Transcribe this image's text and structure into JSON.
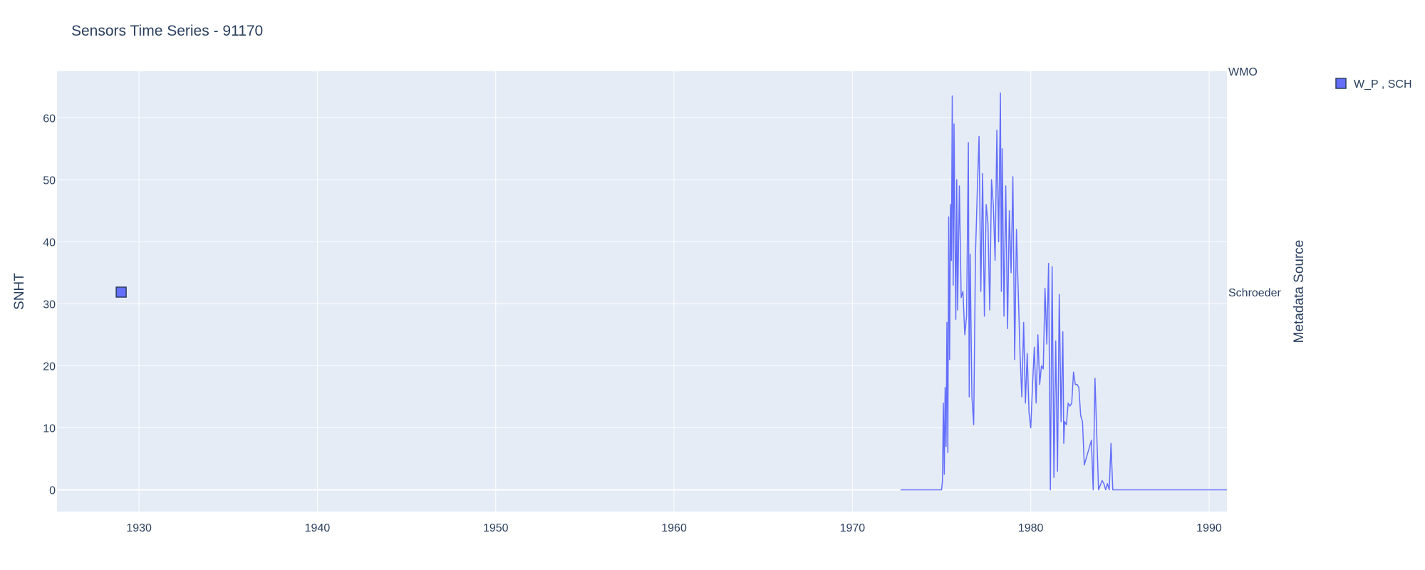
{
  "chart_data": {
    "type": "line",
    "title": "Sensors Time Series - 91170",
    "xlabel": "",
    "ylabel": "SNHT",
    "y2label": "Metadata Source",
    "xlim": [
      1925.4,
      1991.0
    ],
    "ylim": [
      -3.5,
      67.5
    ],
    "x_ticks": [
      1930,
      1940,
      1950,
      1960,
      1970,
      1980,
      1990
    ],
    "y_ticks": [
      0,
      10,
      20,
      30,
      40,
      50,
      60
    ],
    "y2_categories": [
      "Schroeder",
      "WMO"
    ],
    "grid": true,
    "legend_position": "top-right",
    "legend": [
      {
        "label": "W_P , SCH",
        "color": "#636efa",
        "marker": "square"
      }
    ],
    "colors": {
      "series": "#636efa",
      "plot_bg": "#e5ecf6",
      "grid": "#ffffff",
      "text": "#2a3f5f"
    },
    "marker_points": [
      {
        "x": 1929.0,
        "y2": "Schroeder",
        "name": "W_P , SCH"
      }
    ],
    "series": [
      {
        "x": [
          1972.7,
          1975.0,
          1975.05,
          1975.1,
          1975.15,
          1975.2,
          1975.25,
          1975.3,
          1975.35,
          1975.4,
          1975.45,
          1975.5,
          1975.55,
          1975.6,
          1975.65,
          1975.7,
          1975.75,
          1975.8,
          1975.85,
          1975.9,
          1976.0,
          1976.1,
          1976.2,
          1976.3,
          1976.4,
          1976.5,
          1976.55,
          1976.6,
          1976.7,
          1976.8,
          1976.9,
          1977.0,
          1977.1,
          1977.2,
          1977.3,
          1977.4,
          1977.5,
          1977.6,
          1977.7,
          1977.8,
          1977.9,
          1978.0,
          1978.1,
          1978.2,
          1978.3,
          1978.35,
          1978.4,
          1978.5,
          1978.6,
          1978.7,
          1978.8,
          1978.9,
          1979.0,
          1979.1,
          1979.2,
          1979.3,
          1979.4,
          1979.5,
          1979.6,
          1979.7,
          1979.8,
          1979.9,
          1980.0,
          1980.1,
          1980.2,
          1980.3,
          1980.4,
          1980.5,
          1980.6,
          1980.7,
          1980.8,
          1980.9,
          1981.0,
          1981.1,
          1981.2,
          1981.3,
          1981.4,
          1981.5,
          1981.6,
          1981.7,
          1981.8,
          1981.85,
          1981.9,
          1982.0,
          1982.1,
          1982.2,
          1982.3,
          1982.4,
          1982.5,
          1982.6,
          1982.7,
          1982.8,
          1982.9,
          1983.0,
          1983.2,
          1983.4,
          1983.5,
          1983.6,
          1983.8,
          1984.0,
          1984.1,
          1984.2,
          1984.3,
          1984.4,
          1984.5,
          1984.6,
          1984.7,
          1984.8,
          1984.9,
          1985.0,
          1985.1,
          1985.2,
          1985.25,
          1985.3,
          1985.35,
          1985.4,
          1985.5,
          1986.0,
          1988.0,
          1991.0
        ],
        "y": [
          0,
          0,
          1.5,
          14,
          2.5,
          16.5,
          7,
          27,
          6,
          44,
          21,
          46,
          37,
          63.5,
          33,
          59,
          41,
          27.5,
          50,
          29,
          49,
          31,
          32,
          25,
          28,
          56,
          15,
          38,
          15,
          10.5,
          38,
          48,
          57,
          32,
          51,
          28,
          46,
          43,
          29,
          50,
          46,
          37,
          58,
          40,
          64,
          32,
          55,
          28,
          49,
          26,
          45,
          35,
          50.5,
          21,
          42,
          32,
          22,
          15,
          27,
          14,
          22,
          12.5,
          10,
          17,
          23,
          14,
          25,
          17,
          20,
          19.5,
          32.5,
          23.5,
          36.5,
          0,
          36,
          2,
          24,
          3,
          31.5,
          11,
          25.5,
          7.5,
          11,
          10.5,
          14,
          13.5,
          14,
          19,
          17,
          17,
          16.5,
          12,
          11,
          4,
          6,
          8,
          0,
          18,
          0,
          1.5,
          1,
          0,
          1,
          0,
          7.5,
          0,
          0,
          0,
          0,
          0,
          0,
          0,
          0,
          0,
          0,
          0,
          0,
          0,
          0,
          0
        ],
        "name": "W_P , SCH"
      }
    ]
  }
}
